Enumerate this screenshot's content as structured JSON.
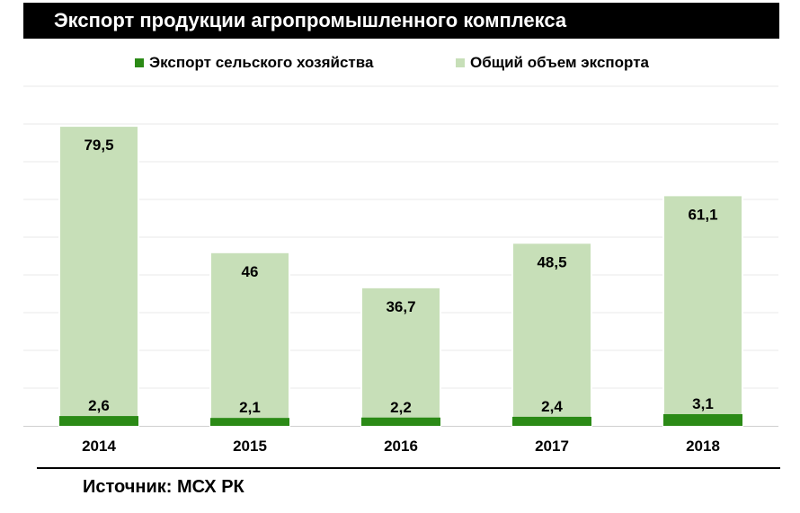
{
  "header": {
    "title": "Экспорт продукции агропромышленного комплекса"
  },
  "source": {
    "text": "Источник: МСХ РК"
  },
  "colors": {
    "agri_export": "#2b8a16",
    "total_export": "#c7dfb8",
    "gridline": "#e8e8e8",
    "axis": "#d0d0d0",
    "title_bg": "#000000"
  },
  "chart_data": {
    "type": "bar",
    "title": "Экспорт продукции агропромышленного комплекса",
    "categories": [
      "2014",
      "2015",
      "2016",
      "2017",
      "2018"
    ],
    "series": [
      {
        "name": "Экспорт сельского хозяйства",
        "values": [
          2.6,
          2.1,
          2.2,
          2.4,
          3.1
        ],
        "labels": [
          "2,6",
          "2,1",
          "2,2",
          "2,4",
          "3,1"
        ]
      },
      {
        "name": "Общий объем экспорта",
        "values": [
          79.5,
          46,
          36.7,
          48.5,
          61.1
        ],
        "labels": [
          "79,5",
          "46",
          "36,7",
          "48,5",
          "61,1"
        ]
      }
    ],
    "legend_position": "top",
    "grid": true,
    "ylim": [
      0,
      90
    ],
    "xlabel": "",
    "ylabel": ""
  }
}
